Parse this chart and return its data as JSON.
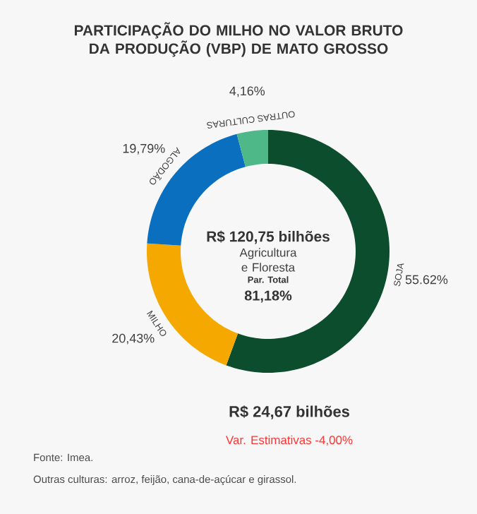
{
  "chart_data": {
    "type": "donut",
    "title": "PARTICIPAÇÃO DO MILHO NO VALOR BRUTO DA PRODUÇÃO (VBP) DE MATO GROSSO",
    "categories": [
      "SOJA",
      "MILHO",
      "ALGODÃO",
      "OUTRAS CULTURAS"
    ],
    "values": [
      55.62,
      20.43,
      19.79,
      4.16
    ],
    "value_labels": [
      "55.62%",
      "20,43%",
      "19,79%",
      "4,16%"
    ],
    "colors": [
      "#0b4d2c",
      "#f5a800",
      "#0b6fc0",
      "#4fb888"
    ],
    "annotations": [
      "R$ 120,75 bilhões",
      "Agricultura e Floresta",
      "Par. Total",
      "81,18%",
      "R$ 24,67 bilhões",
      "Var. Estimativas -4,00%",
      "Fonte: Imea.",
      "Outras culturas: arroz, feijão, cana-de-açúcar e girassol."
    ]
  }
}
